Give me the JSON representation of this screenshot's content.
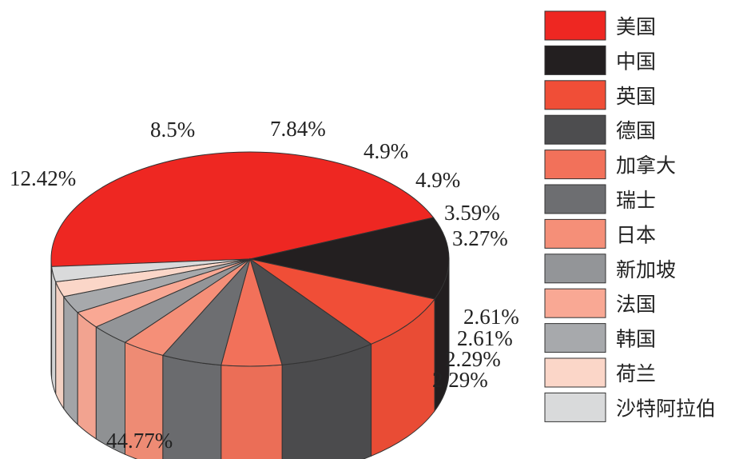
{
  "chart_data": {
    "type": "pie",
    "title": "",
    "legend_position": "right",
    "slices": [
      {
        "label": "美国",
        "value": 44.77,
        "text": "44.77%",
        "color": "#ee2722"
      },
      {
        "label": "中国",
        "value": 12.42,
        "text": "12.42%",
        "color": "#231f20"
      },
      {
        "label": "英国",
        "value": 8.5,
        "text": "8.5%",
        "color": "#f04e37"
      },
      {
        "label": "德国",
        "value": 7.84,
        "text": "7.84%",
        "color": "#4d4d4f"
      },
      {
        "label": "加拿大",
        "value": 4.9,
        "text": "4.9%",
        "color": "#f2715a"
      },
      {
        "label": "瑞士",
        "value": 4.9,
        "text": "4.9%",
        "color": "#6d6e71"
      },
      {
        "label": "日本",
        "value": 3.59,
        "text": "3.59%",
        "color": "#f58f78"
      },
      {
        "label": "新加坡",
        "value": 3.27,
        "text": "3.27%",
        "color": "#939598"
      },
      {
        "label": "法国",
        "value": 2.61,
        "text": "2.61%",
        "color": "#f9a894"
      },
      {
        "label": "韩国",
        "value": 2.61,
        "text": "2.61%",
        "color": "#a7a9ac"
      },
      {
        "label": "荷兰",
        "value": 2.29,
        "text": "2.29%",
        "color": "#fbd6c8"
      },
      {
        "label": "沙特阿拉伯",
        "value": 2.29,
        "text": "2.29%",
        "color": "#d9dadb"
      }
    ]
  }
}
